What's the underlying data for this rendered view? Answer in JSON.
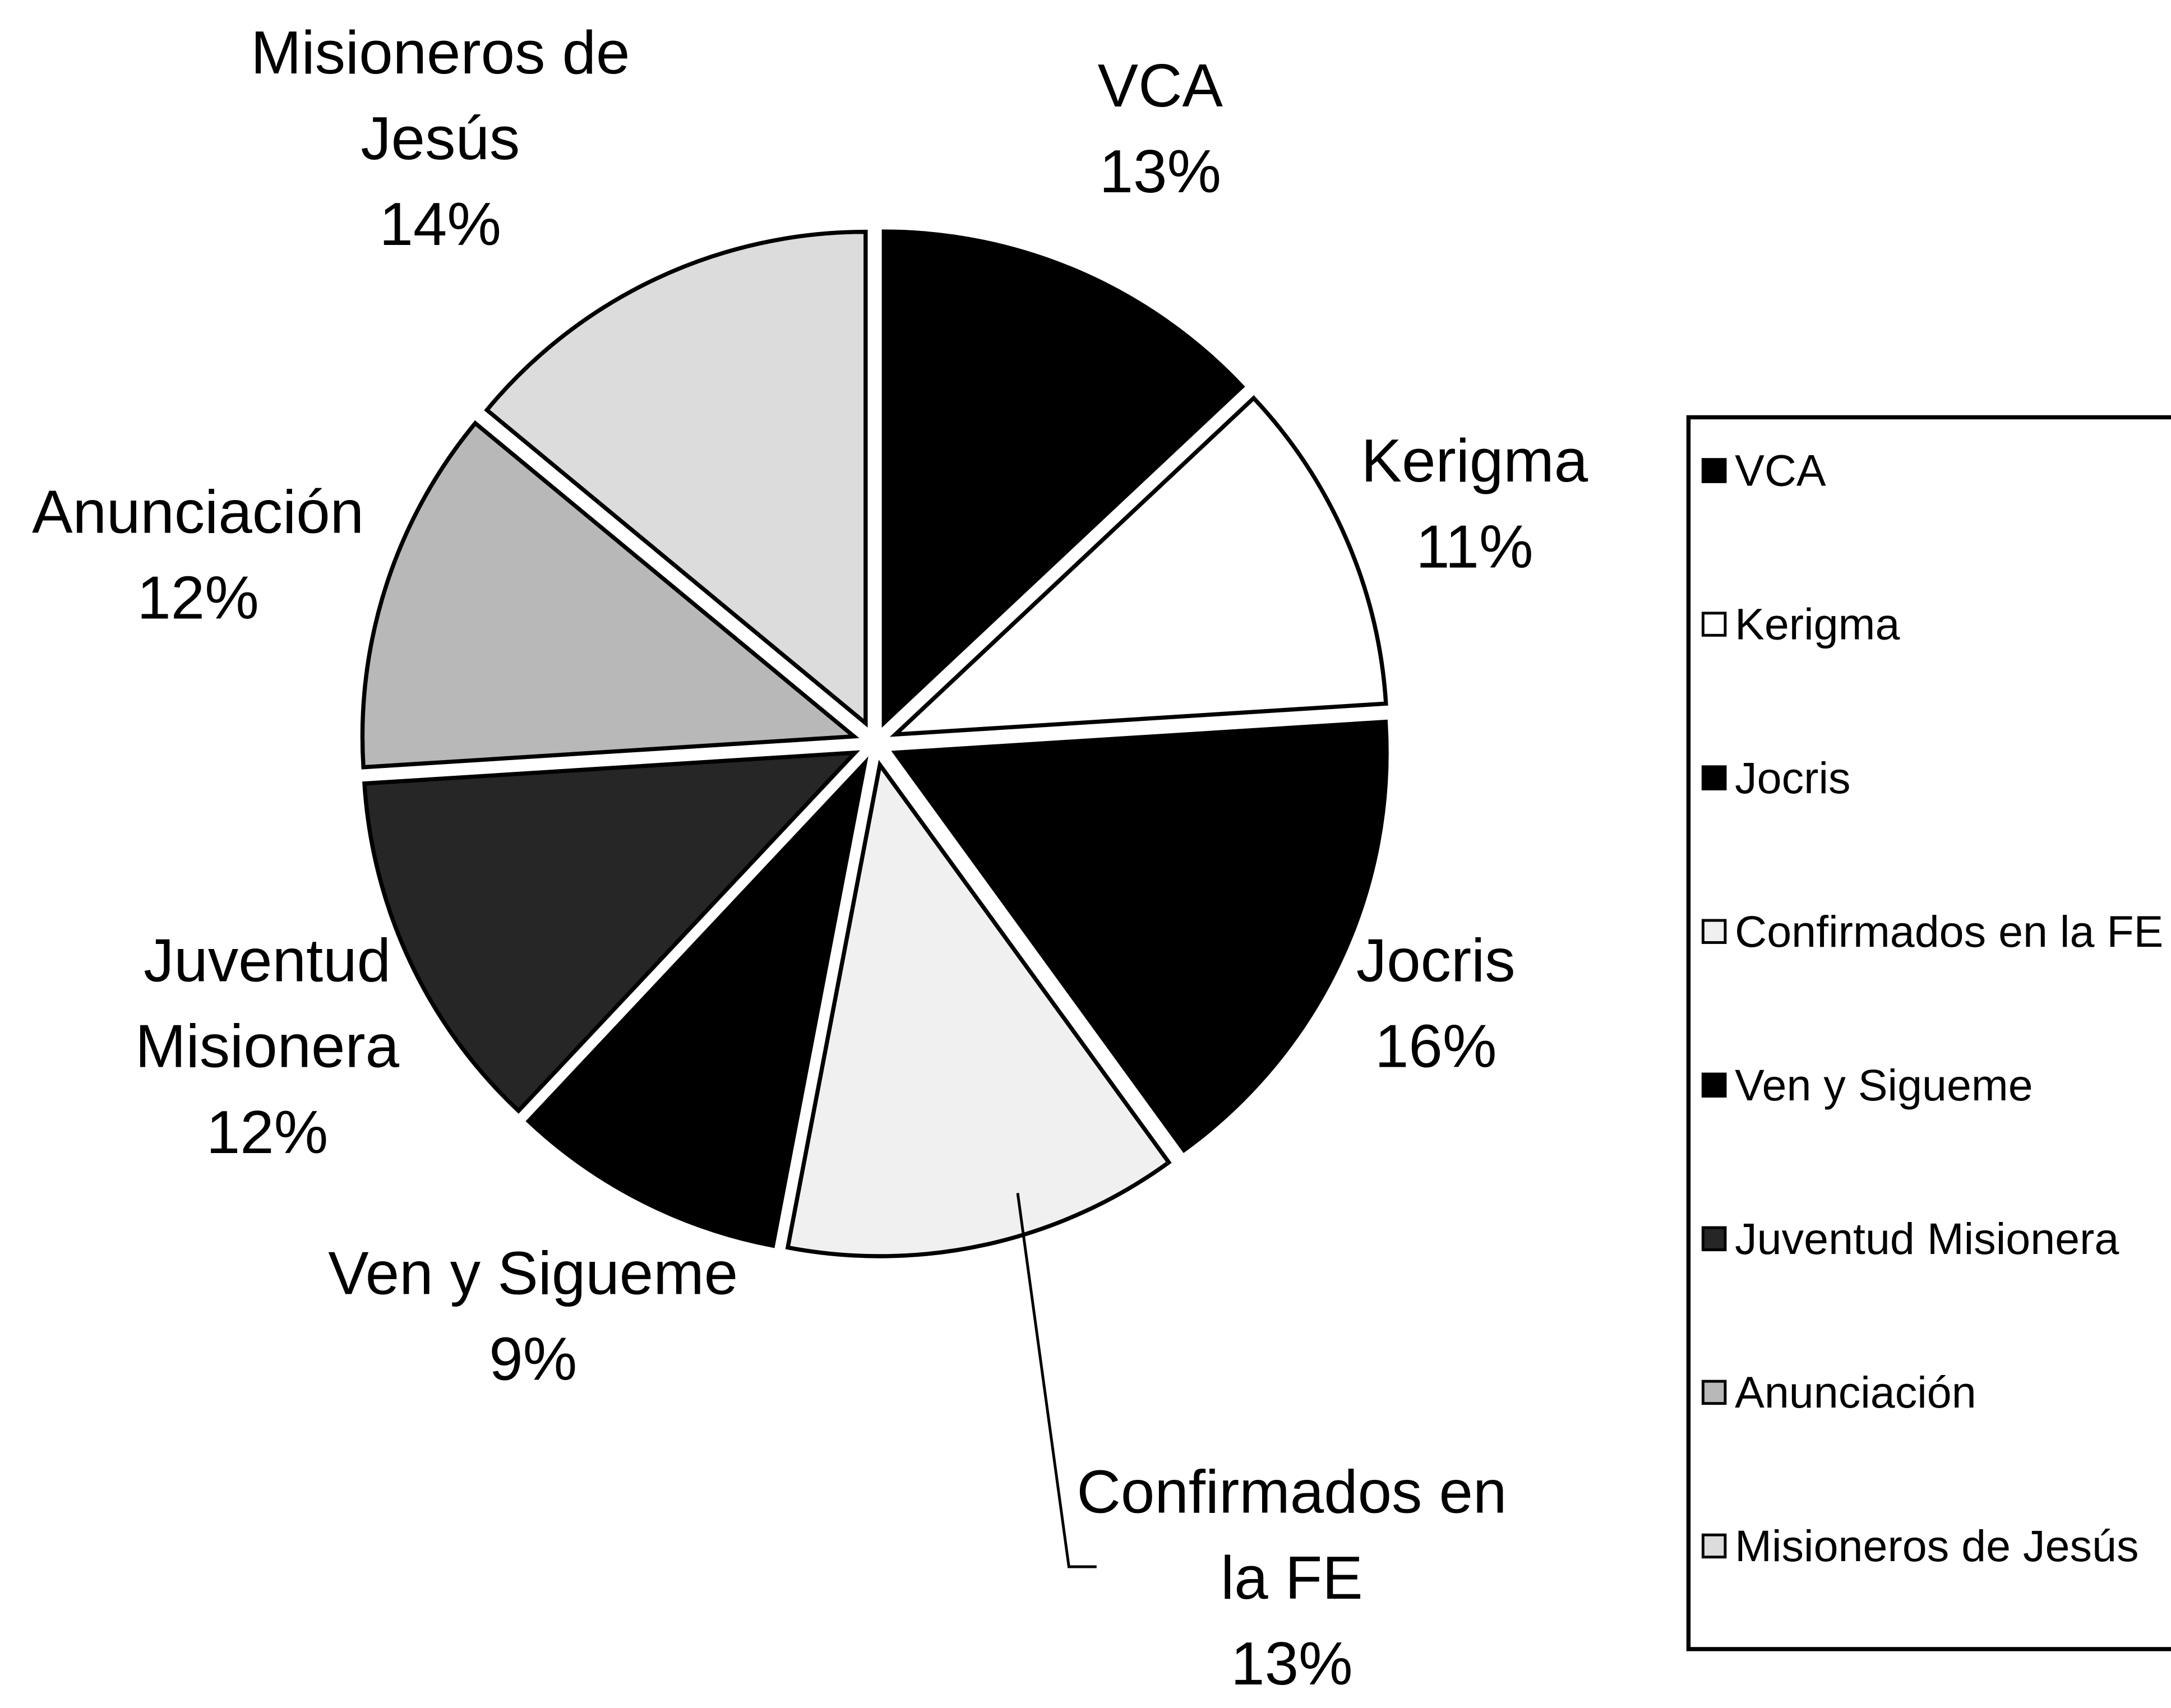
{
  "chart_data": {
    "type": "pie",
    "categories": [
      "VCA",
      "Kerigma",
      "Jocris",
      "Confirmados en la FE",
      "Ven y Sigueme",
      "Juventud Misionera",
      "Anunciación",
      "Misioneros de Jesús"
    ],
    "values": [
      13,
      11,
      16,
      13,
      9,
      12,
      12,
      14
    ],
    "value_labels": [
      "13%",
      "11%",
      "16%",
      "13%",
      "9%",
      "12%",
      "12%",
      "14%"
    ],
    "colors": [
      "#000000",
      "#ffffff",
      "#000000",
      "#f0f0f0",
      "#000000",
      "#262626",
      "#b8b8b8",
      "#dcdcdc"
    ],
    "legend": "right"
  }
}
